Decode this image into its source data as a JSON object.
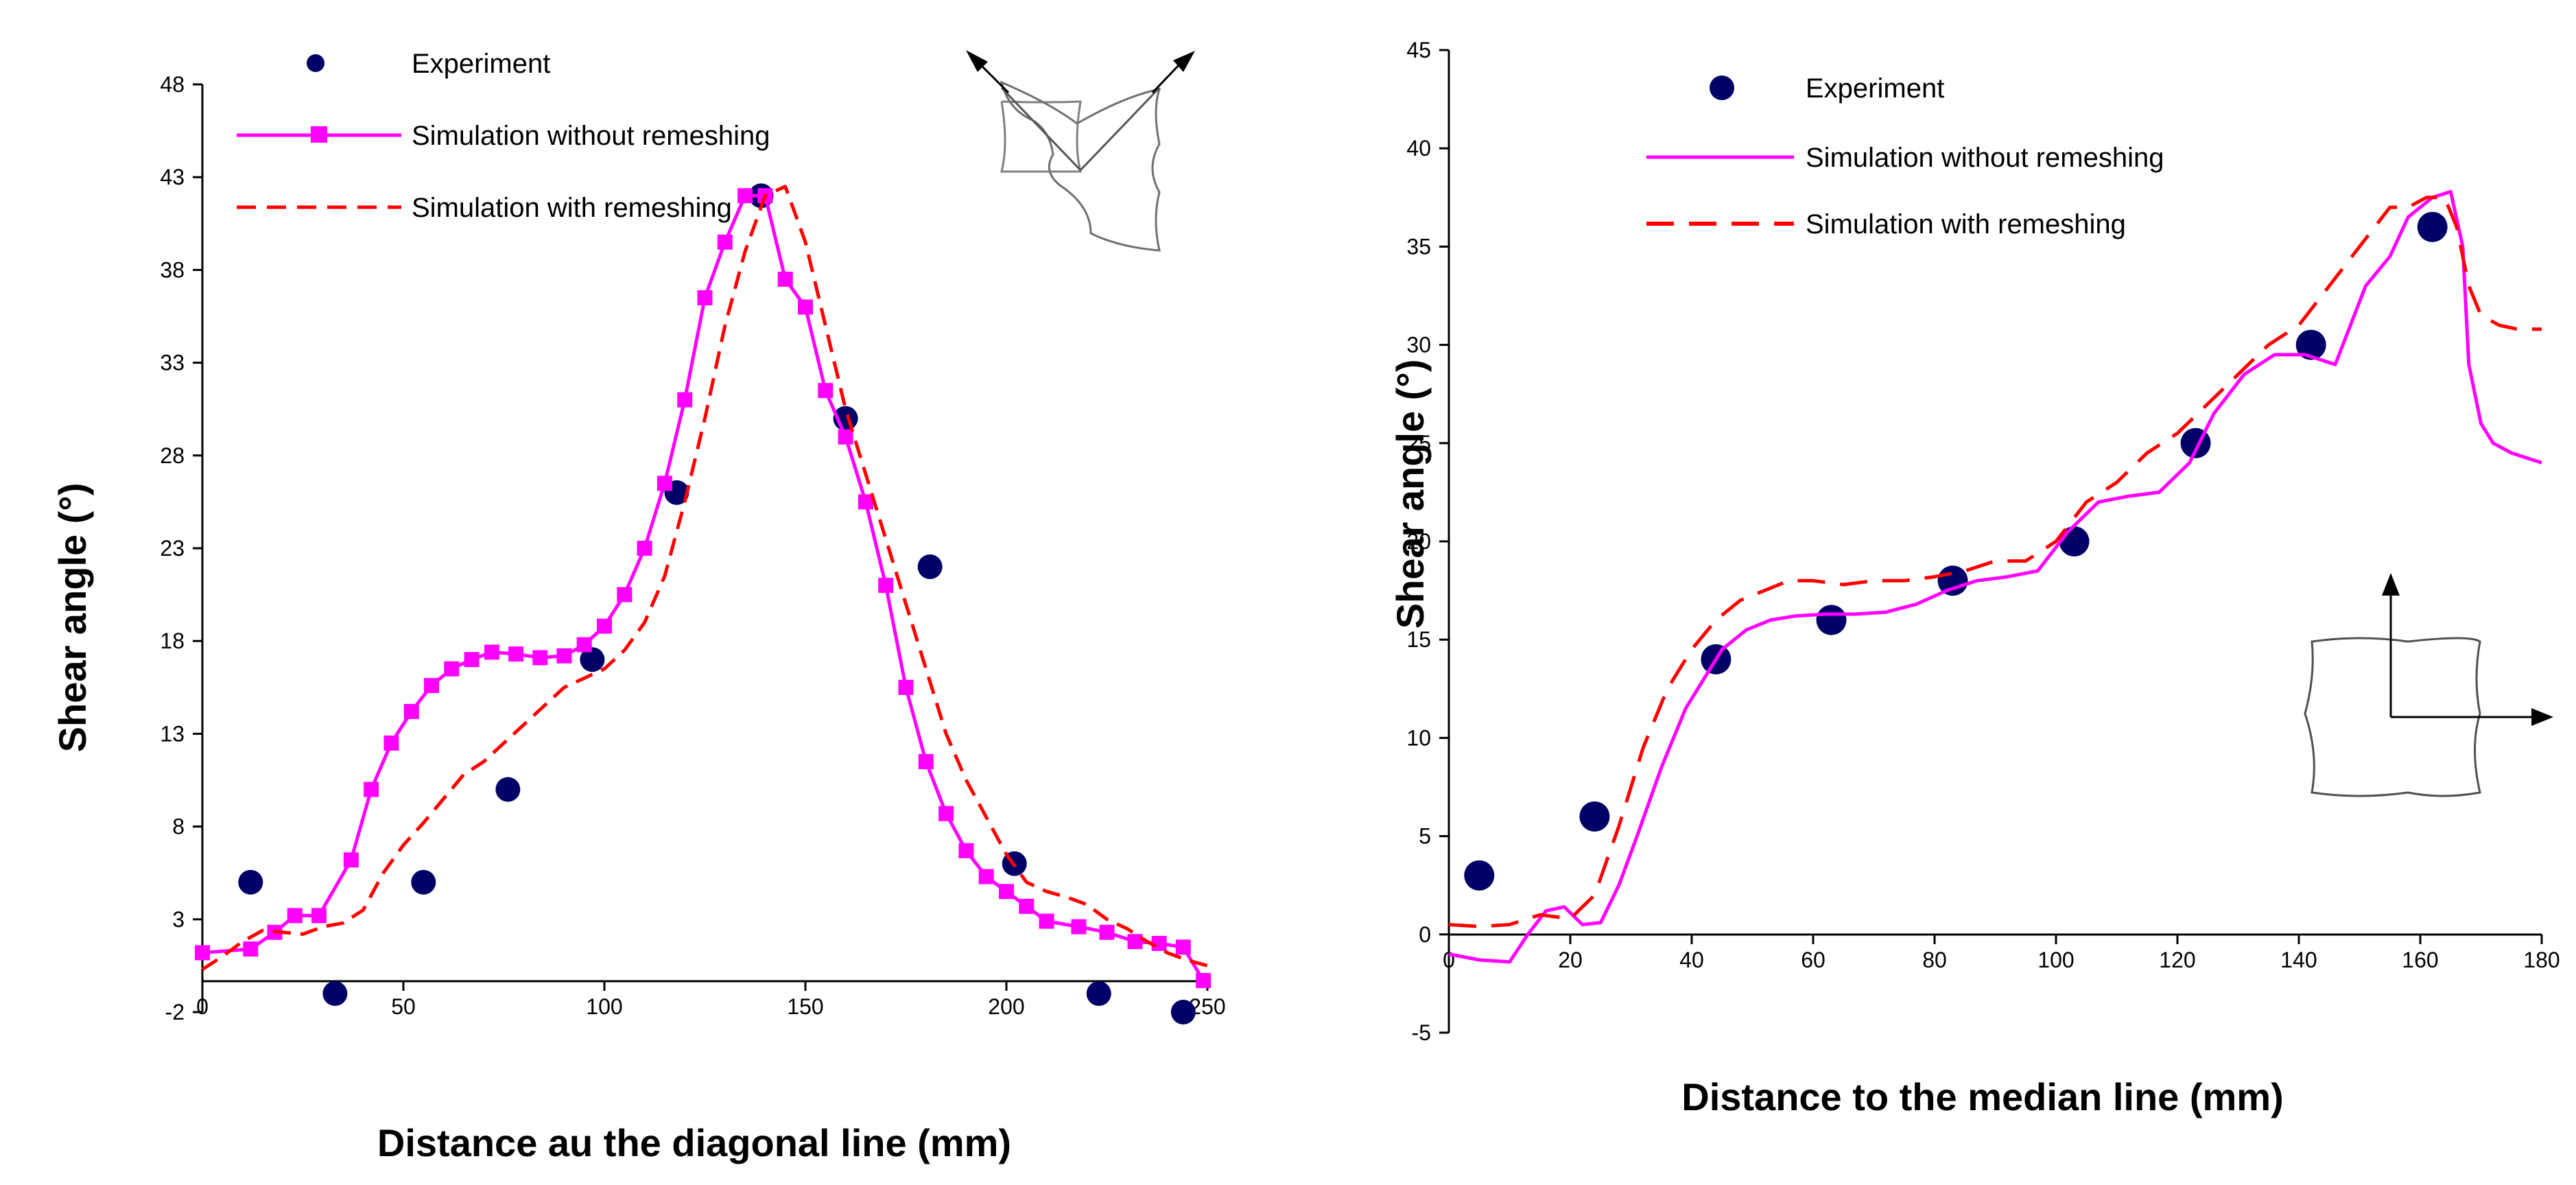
{
  "colors": {
    "experiment": "#000066",
    "no_remesh": "#ff00ff",
    "remesh": "#ff0000",
    "axis": "#000000",
    "inset": "#404040"
  },
  "chart_data": [
    {
      "type": "line",
      "title": "",
      "xlabel": "Distance au the diagonal line (mm)",
      "ylabel": "Shear angle (°)",
      "xlim": [
        0,
        250
      ],
      "ylim": [
        -2,
        48
      ],
      "xticks": [
        0,
        50,
        100,
        150,
        200,
        250
      ],
      "yticks": [
        -2,
        3,
        8,
        13,
        18,
        23,
        28,
        33,
        38,
        43,
        48
      ],
      "xtick_labels": [
        "0",
        "50",
        "100",
        "150",
        "200",
        "250"
      ],
      "ytick_labels": [
        "-2",
        "3",
        "8",
        "13",
        "18",
        "23",
        "28",
        "33",
        "38",
        "43",
        "48"
      ],
      "legend": [
        "Experiment",
        "Simulation without remeshing",
        "Simulation with remeshing"
      ],
      "series": [
        {
          "name": "Experiment",
          "style": "dots",
          "x": [
            12,
            33,
            55,
            76,
            97,
            118,
            139,
            160,
            181,
            202,
            223,
            244
          ],
          "y": [
            5,
            -1,
            5,
            10,
            17,
            26,
            42,
            30,
            22,
            6,
            -1,
            -2
          ]
        },
        {
          "name": "Simulation without remeshing",
          "style": "solid-square",
          "x": [
            0,
            12,
            18,
            23,
            29,
            37,
            42,
            47,
            52,
            57,
            62,
            67,
            72,
            78,
            84,
            90,
            95,
            100,
            105,
            110,
            115,
            120,
            125,
            130,
            135,
            140,
            145,
            150,
            155,
            160,
            165,
            170,
            175,
            180,
            185,
            190,
            195,
            200,
            205,
            210,
            218,
            225,
            232,
            238,
            244,
            249
          ],
          "y": [
            1.2,
            1.4,
            2.3,
            3.2,
            3.2,
            6.2,
            10.0,
            12.5,
            14.2,
            15.6,
            16.5,
            17.0,
            17.4,
            17.3,
            17.1,
            17.2,
            17.8,
            18.8,
            20.5,
            23.0,
            26.5,
            31.0,
            36.5,
            39.5,
            42.0,
            42.0,
            37.5,
            36.0,
            31.5,
            29.0,
            25.5,
            21.0,
            15.5,
            11.5,
            8.7,
            6.7,
            5.3,
            4.5,
            3.7,
            2.9,
            2.6,
            2.3,
            1.8,
            1.7,
            1.5,
            -0.3
          ]
        },
        {
          "name": "Simulation with remeshing",
          "style": "dashed",
          "x": [
            0,
            5,
            10,
            15,
            20,
            25,
            30,
            35,
            40,
            45,
            50,
            55,
            60,
            65,
            70,
            75,
            80,
            85,
            90,
            95,
            100,
            105,
            110,
            115,
            120,
            125,
            130,
            135,
            140,
            145,
            150,
            155,
            160,
            165,
            170,
            175,
            180,
            185,
            190,
            195,
            200,
            205,
            210,
            215,
            220,
            225,
            230,
            235,
            240,
            245,
            250
          ],
          "y": [
            0.3,
            1.0,
            1.8,
            2.4,
            2.3,
            2.2,
            2.6,
            2.8,
            3.5,
            5.5,
            7.0,
            8.2,
            9.5,
            10.8,
            11.5,
            12.5,
            13.5,
            14.5,
            15.5,
            16.0,
            16.5,
            17.5,
            19.0,
            21.5,
            25.5,
            30.0,
            35.0,
            39.0,
            42.0,
            42.5,
            39.5,
            35.0,
            30.5,
            27.0,
            23.5,
            20.0,
            16.5,
            13.0,
            10.5,
            8.5,
            6.5,
            5.0,
            4.5,
            4.2,
            3.8,
            3.0,
            2.5,
            1.8,
            1.2,
            0.8,
            0.5
          ]
        }
      ]
    },
    {
      "type": "line",
      "title": "",
      "xlabel": "Distance to the median line (mm)",
      "ylabel": "Shear angle (°)",
      "xlim": [
        0,
        180
      ],
      "ylim": [
        -5,
        45
      ],
      "xticks": [
        0,
        20,
        40,
        60,
        80,
        100,
        120,
        140,
        160,
        180
      ],
      "yticks": [
        -5,
        0,
        5,
        10,
        15,
        20,
        25,
        30,
        35,
        40,
        45
      ],
      "xtick_labels": [
        "0",
        "20",
        "40",
        "60",
        "80",
        "100",
        "120",
        "140",
        "160",
        "180"
      ],
      "ytick_labels": [
        "-5",
        "0",
        "5",
        "10",
        "15",
        "20",
        "25",
        "30",
        "35",
        "40",
        "45"
      ],
      "legend": [
        "Experiment",
        "Simulation without remeshing",
        "Simulation with remeshing"
      ],
      "series": [
        {
          "name": "Experiment",
          "style": "dots",
          "x": [
            5,
            24,
            44,
            63,
            83,
            103,
            123,
            142,
            162
          ],
          "y": [
            3,
            6,
            14,
            16,
            18,
            20,
            25,
            30,
            36
          ]
        },
        {
          "name": "Simulation without remeshing",
          "style": "solid",
          "x": [
            0,
            5,
            10,
            13,
            16,
            19,
            22,
            25,
            28,
            31,
            35,
            39,
            42,
            45,
            49,
            53,
            57,
            62,
            67,
            72,
            77,
            82,
            87,
            92,
            97,
            102,
            107,
            112,
            117,
            122,
            126,
            131,
            136,
            141,
            146,
            151,
            155,
            158,
            162,
            165,
            167,
            168,
            170,
            172,
            175,
            178,
            180
          ],
          "y": [
            -1.0,
            -1.3,
            -1.4,
            0.0,
            1.2,
            1.4,
            0.5,
            0.6,
            2.5,
            5.0,
            8.5,
            11.5,
            13.0,
            14.5,
            15.5,
            16.0,
            16.2,
            16.3,
            16.3,
            16.4,
            16.8,
            17.5,
            18.0,
            18.2,
            18.5,
            20.5,
            22.0,
            22.3,
            22.5,
            24.0,
            26.5,
            28.5,
            29.5,
            29.5,
            29.0,
            33.0,
            34.5,
            36.5,
            37.5,
            37.8,
            35.0,
            29.0,
            26.0,
            25.0,
            24.5,
            24.2,
            24.0
          ]
        },
        {
          "name": "Simulation with remeshing",
          "style": "dashed",
          "x": [
            0,
            5,
            10,
            15,
            20,
            24,
            28,
            32,
            36,
            40,
            44,
            48,
            52,
            56,
            60,
            65,
            70,
            75,
            80,
            85,
            90,
            95,
            100,
            105,
            110,
            115,
            120,
            125,
            130,
            135,
            140,
            145,
            150,
            155,
            158,
            161,
            164,
            166,
            168,
            170,
            173,
            176,
            180
          ],
          "y": [
            0.5,
            0.4,
            0.5,
            1.0,
            0.8,
            2.0,
            5.5,
            9.5,
            12.5,
            14.5,
            16.0,
            17.0,
            17.5,
            18.0,
            18.0,
            17.8,
            18.0,
            18.0,
            18.2,
            18.5,
            19.0,
            19.0,
            20.0,
            22.0,
            23.0,
            24.5,
            25.5,
            27.0,
            28.5,
            30.0,
            31.0,
            33.0,
            35.0,
            37.0,
            37.0,
            37.5,
            37.5,
            36.0,
            33.0,
            31.5,
            31.0,
            30.8,
            30.8
          ]
        }
      ]
    }
  ]
}
